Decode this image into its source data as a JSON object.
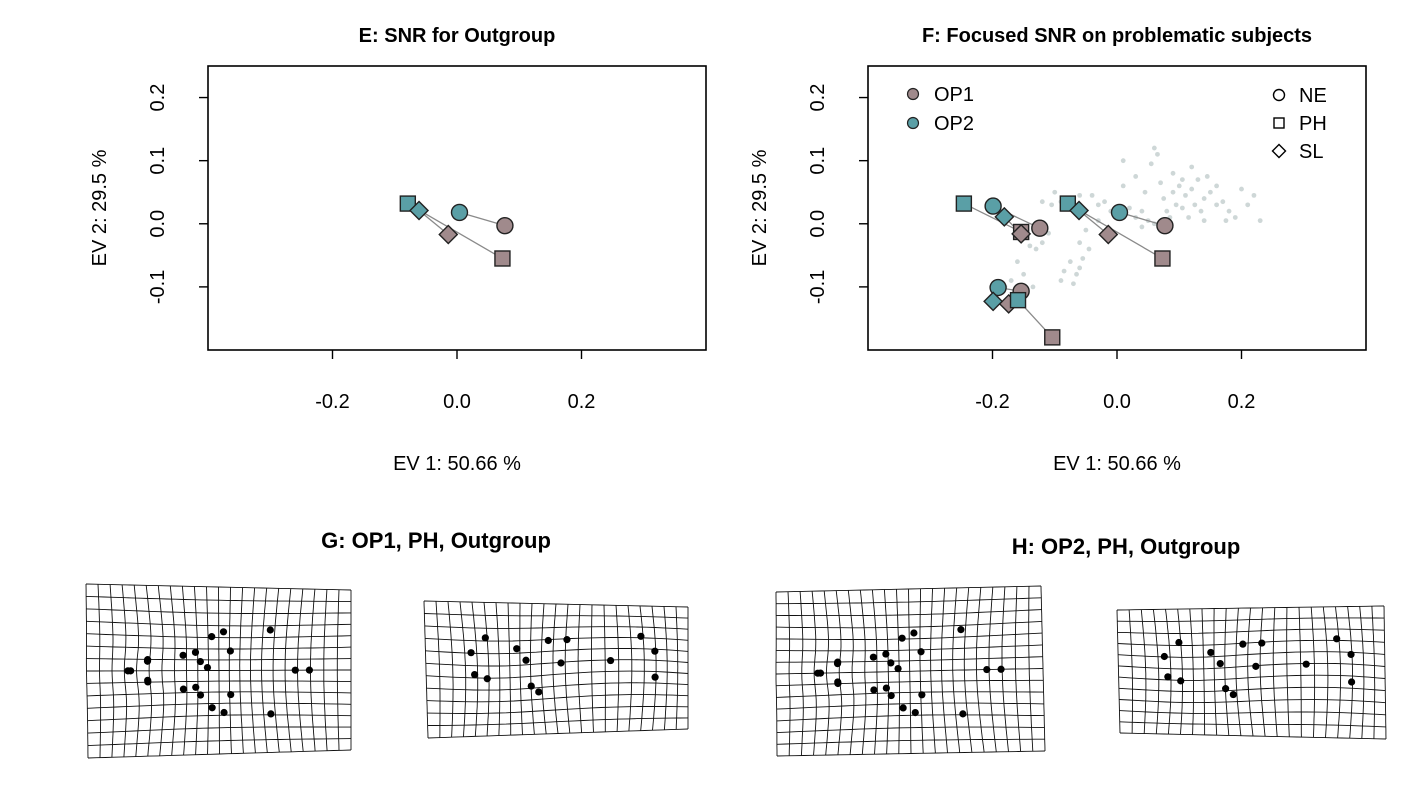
{
  "chart_data": [
    {
      "type": "scatter",
      "title": "E: SNR for Outgroup",
      "xlabel": "EV 1: 50.66 %",
      "ylabel": "EV 2: 29.5 %",
      "xlim": [
        -0.4,
        0.4
      ],
      "ylim": [
        -0.2,
        0.25
      ],
      "x_ticks": [
        -0.2,
        0.0,
        0.2
      ],
      "x_tick_labels": [
        "-0.2",
        "0.0",
        "0.2"
      ],
      "y_ticks": [
        -0.1,
        0.0,
        0.1,
        0.2
      ],
      "y_tick_labels": [
        "-0.1",
        "0.0",
        "0.1",
        "0.2"
      ],
      "grid": false,
      "points": [
        {
          "group": "OP1",
          "shape": "NE",
          "x": 0.077,
          "y": -0.003
        },
        {
          "group": "OP1",
          "shape": "PH",
          "x": 0.073,
          "y": -0.055
        },
        {
          "group": "OP1",
          "shape": "SL",
          "x": -0.014,
          "y": -0.017
        },
        {
          "group": "OP2",
          "shape": "NE",
          "x": 0.004,
          "y": 0.018
        },
        {
          "group": "OP2",
          "shape": "PH",
          "x": -0.079,
          "y": 0.032
        },
        {
          "group": "OP2",
          "shape": "SL",
          "x": -0.061,
          "y": 0.021
        }
      ],
      "links": [
        [
          0,
          3
        ],
        [
          1,
          4
        ],
        [
          2,
          5
        ]
      ]
    },
    {
      "type": "scatter",
      "title": "F: Focused SNR on problematic subjects",
      "xlabel": "EV 1: 50.66 %",
      "ylabel": "EV 2: 29.5 %",
      "xlim": [
        -0.4,
        0.4
      ],
      "ylim": [
        -0.2,
        0.25
      ],
      "x_ticks": [
        -0.2,
        0.0,
        0.2
      ],
      "x_tick_labels": [
        "-0.2",
        "0.0",
        "0.2"
      ],
      "y_ticks": [
        -0.1,
        0.0,
        0.1,
        0.2
      ],
      "y_tick_labels": [
        "-0.1",
        "0.0",
        "0.1",
        "0.2"
      ],
      "grid": false,
      "legend_groups": {
        "placement": "top-left",
        "entries": [
          {
            "name": "OP1",
            "color": "#a08a8c"
          },
          {
            "name": "OP2",
            "color": "#5a9fa6"
          }
        ]
      },
      "legend_shapes": {
        "placement": "top-right",
        "entries": [
          {
            "name": "NE",
            "marker": "circle"
          },
          {
            "name": "PH",
            "marker": "square"
          },
          {
            "name": "SL",
            "marker": "diamond"
          }
        ]
      },
      "points": [
        {
          "group": "OP1",
          "shape": "NE",
          "x": 0.077,
          "y": -0.003
        },
        {
          "group": "OP1",
          "shape": "PH",
          "x": 0.073,
          "y": -0.055
        },
        {
          "group": "OP1",
          "shape": "SL",
          "x": -0.014,
          "y": -0.017
        },
        {
          "group": "OP2",
          "shape": "NE",
          "x": 0.004,
          "y": 0.018
        },
        {
          "group": "OP2",
          "shape": "PH",
          "x": -0.079,
          "y": 0.032
        },
        {
          "group": "OP2",
          "shape": "SL",
          "x": -0.061,
          "y": 0.021
        },
        {
          "group": "OP1",
          "shape": "NE",
          "x": -0.124,
          "y": -0.007
        },
        {
          "group": "OP1",
          "shape": "PH",
          "x": -0.154,
          "y": -0.013
        },
        {
          "group": "OP1",
          "shape": "SL",
          "x": -0.154,
          "y": -0.016
        },
        {
          "group": "OP2",
          "shape": "NE",
          "x": -0.199,
          "y": 0.028
        },
        {
          "group": "OP2",
          "shape": "PH",
          "x": -0.246,
          "y": 0.032
        },
        {
          "group": "OP2",
          "shape": "SL",
          "x": -0.181,
          "y": 0.011
        },
        {
          "group": "OP1",
          "shape": "NE",
          "x": -0.154,
          "y": -0.107
        },
        {
          "group": "OP1",
          "shape": "PH",
          "x": -0.104,
          "y": -0.18
        },
        {
          "group": "OP1",
          "shape": "SL",
          "x": -0.174,
          "y": -0.127
        },
        {
          "group": "OP2",
          "shape": "NE",
          "x": -0.191,
          "y": -0.101
        },
        {
          "group": "OP2",
          "shape": "PH",
          "x": -0.159,
          "y": -0.121
        },
        {
          "group": "OP2",
          "shape": "SL",
          "x": -0.199,
          "y": -0.123
        }
      ],
      "links": [
        [
          0,
          3
        ],
        [
          1,
          4
        ],
        [
          2,
          5
        ],
        [
          6,
          9
        ],
        [
          7,
          10
        ],
        [
          8,
          11
        ],
        [
          12,
          15
        ],
        [
          13,
          16
        ],
        [
          14,
          17
        ]
      ],
      "background_points": [
        [
          -0.12,
          0.035
        ],
        [
          -0.105,
          0.03
        ],
        [
          -0.09,
          0.035
        ],
        [
          -0.08,
          0.04
        ],
        [
          -0.1,
          0.05
        ],
        [
          -0.06,
          0.045
        ],
        [
          -0.04,
          0.045
        ],
        [
          -0.03,
          0.03
        ],
        [
          -0.02,
          0.035
        ],
        [
          0.01,
          0.06
        ],
        [
          0.03,
          0.075
        ],
        [
          0.045,
          0.05
        ],
        [
          0.055,
          0.095
        ],
        [
          0.06,
          0.12
        ],
        [
          0.065,
          0.11
        ],
        [
          0.07,
          0.065
        ],
        [
          0.075,
          0.04
        ],
        [
          0.08,
          0.02
        ],
        [
          0.085,
          0.01
        ],
        [
          0.09,
          0.05
        ],
        [
          0.095,
          0.03
        ],
        [
          0.1,
          0.06
        ],
        [
          0.105,
          0.025
        ],
        [
          0.11,
          0.045
        ],
        [
          0.115,
          0.01
        ],
        [
          0.12,
          0.055
        ],
        [
          0.125,
          0.03
        ],
        [
          0.13,
          0.07
        ],
        [
          0.135,
          0.02
        ],
        [
          0.14,
          0.04
        ],
        [
          0.15,
          0.05
        ],
        [
          0.16,
          0.03
        ],
        [
          0.17,
          0.035
        ],
        [
          0.18,
          0.02
        ],
        [
          0.19,
          0.01
        ],
        [
          0.21,
          0.03
        ],
        [
          0.22,
          0.045
        ],
        [
          0.23,
          0.005
        ],
        [
          0.05,
          0.005
        ],
        [
          0.04,
          -0.005
        ],
        [
          0.03,
          0.01
        ],
        [
          0.02,
          0.025
        ],
        [
          -0.01,
          0.02
        ],
        [
          -0.03,
          0.005
        ],
        [
          -0.05,
          -0.01
        ],
        [
          -0.06,
          -0.03
        ],
        [
          -0.055,
          -0.055
        ],
        [
          -0.06,
          -0.07
        ],
        [
          -0.065,
          -0.08
        ],
        [
          -0.07,
          -0.095
        ],
        [
          -0.075,
          -0.06
        ],
        [
          -0.085,
          -0.075
        ],
        [
          -0.09,
          -0.09
        ],
        [
          -0.045,
          -0.04
        ],
        [
          -0.12,
          -0.03
        ],
        [
          -0.13,
          -0.04
        ],
        [
          -0.14,
          -0.035
        ],
        [
          -0.11,
          -0.015
        ],
        [
          -0.16,
          -0.06
        ],
        [
          -0.15,
          -0.08
        ],
        [
          -0.135,
          -0.1
        ],
        [
          -0.17,
          -0.09
        ],
        [
          -0.18,
          -0.1
        ],
        [
          -0.165,
          -0.115
        ],
        [
          0.09,
          0.08
        ],
        [
          0.105,
          0.07
        ],
        [
          0.12,
          0.09
        ],
        [
          0.145,
          0.075
        ],
        [
          0.16,
          0.06
        ],
        [
          0.2,
          0.055
        ],
        [
          0.01,
          0.1
        ],
        [
          0.04,
          0.02
        ],
        [
          -0.02,
          -0.02
        ],
        [
          0.06,
          0.0
        ],
        [
          0.14,
          0.005
        ],
        [
          0.175,
          0.005
        ]
      ]
    }
  ],
  "panels": {
    "G": {
      "title": "G: OP1, PH, Outgroup"
    },
    "H": {
      "title": "H: OP2, PH, Outgroup"
    }
  },
  "colors": {
    "OP1": "#a08a8c",
    "OP2": "#5a9fa6",
    "background": "#b9c6c6"
  }
}
